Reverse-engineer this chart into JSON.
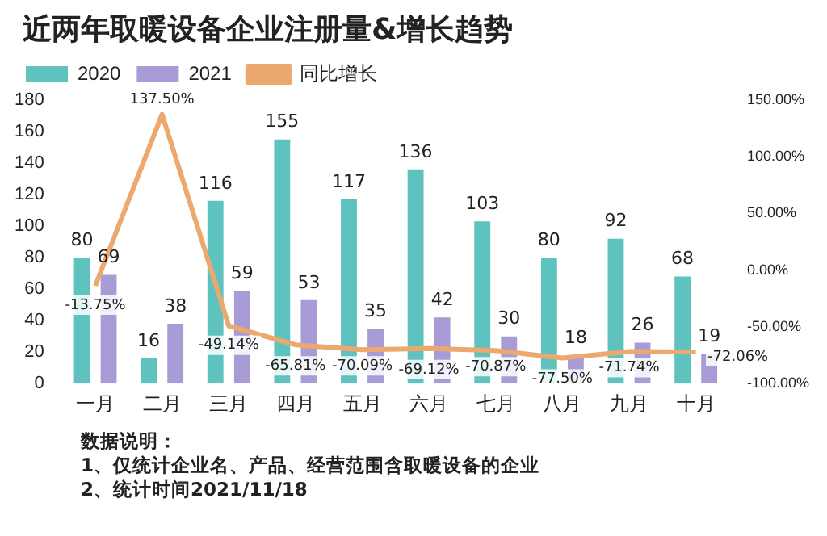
{
  "chart_data": {
    "type": "bar",
    "title": "近两年取暖设备企业注册量&增长趋势",
    "categories": [
      "一月",
      "二月",
      "三月",
      "四月",
      "五月",
      "六月",
      "七月",
      "八月",
      "九月",
      "十月"
    ],
    "series": [
      {
        "name": "2020",
        "color": "#5ec2bf",
        "values": [
          80,
          16,
          116,
          155,
          117,
          136,
          103,
          80,
          92,
          68
        ],
        "value_labels": [
          "80",
          "16",
          "116",
          "155",
          "117",
          "136",
          "103",
          "80",
          "92",
          "68"
        ]
      },
      {
        "name": "2021",
        "color": "#a99bd5",
        "values": [
          69,
          38,
          59,
          53,
          35,
          42,
          30,
          18,
          26,
          19
        ],
        "value_labels": [
          "69",
          "38",
          "59",
          "53",
          "35",
          "42",
          "30",
          "18",
          "26",
          "19"
        ]
      },
      {
        "name": "同比增长",
        "type": "line",
        "axis": "y2",
        "color": "#eba96f",
        "values": [
          -13.75,
          137.5,
          -49.14,
          -65.81,
          -70.09,
          -69.12,
          -70.87,
          -77.5,
          -71.74,
          -72.06
        ],
        "value_labels": [
          "-13.75%",
          "137.50%",
          "-49.14%",
          "-65.81%",
          "-70.09%",
          "-69.12%",
          "-70.87%",
          "-77.50%",
          "-71.74%",
          "-72.06%"
        ]
      }
    ],
    "ylim": [
      0,
      180
    ],
    "yticks": [
      0,
      20,
      40,
      60,
      80,
      100,
      120,
      140,
      160,
      180
    ],
    "y2lim": [
      -100,
      150
    ],
    "y2ticks": [
      {
        "value": -100,
        "label": "-100.00%"
      },
      {
        "value": -50,
        "label": "-50.00%"
      },
      {
        "value": 0,
        "label": "0.00%"
      },
      {
        "value": 50,
        "label": "50.00%"
      },
      {
        "value": 100,
        "label": "100.00%"
      },
      {
        "value": 150,
        "label": "150.00%"
      }
    ],
    "grid": false,
    "legend": "top left",
    "marker": "none",
    "line_style": "solid",
    "annotations": [
      "数据说明：",
      "1、仅统计企业名、产品、经营范围含取暖设备的企业",
      "2、统计时间2021/11/18"
    ]
  }
}
